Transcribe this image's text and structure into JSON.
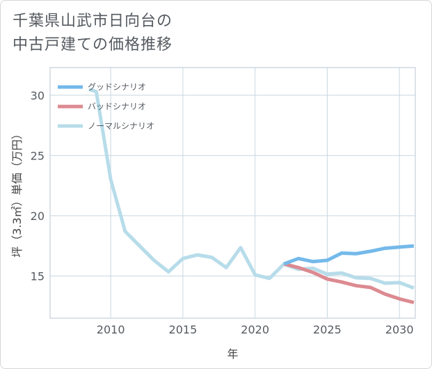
{
  "chart_data": {
    "type": "line",
    "title_line1": "千葉県山武市日向台の",
    "title_line2": "中古戸建ての価格推移",
    "xlabel": "年",
    "ylabel": "坪（3.3㎡）単価（万円）",
    "xlim": [
      2005.8,
      2031.1
    ],
    "ylim": [
      11.5,
      32.3
    ],
    "xticks": [
      2010,
      2015,
      2020,
      2025,
      2030
    ],
    "yticks": [
      15,
      20,
      25,
      30
    ],
    "series": [
      {
        "name": "グッドシナリオ",
        "color": "#74b9ea",
        "points": [
          [
            2022,
            16.0
          ],
          [
            2023,
            16.45
          ],
          [
            2024,
            16.2
          ],
          [
            2025,
            16.3
          ],
          [
            2026,
            16.9
          ],
          [
            2027,
            16.85
          ],
          [
            2028,
            17.05
          ],
          [
            2029,
            17.3
          ],
          [
            2030,
            17.4
          ],
          [
            2031,
            17.5
          ]
        ]
      },
      {
        "name": "バッドシナリオ",
        "color": "#dc8a90",
        "points": [
          [
            2022,
            16.0
          ],
          [
            2023,
            15.7
          ],
          [
            2024,
            15.3
          ],
          [
            2025,
            14.75
          ],
          [
            2026,
            14.5
          ],
          [
            2027,
            14.2
          ],
          [
            2028,
            14.05
          ],
          [
            2029,
            13.5
          ],
          [
            2030,
            13.1
          ],
          [
            2031,
            12.8
          ]
        ]
      },
      {
        "name": "ノーマルシナリオ",
        "color": "#b7dcea",
        "points": [
          [
            2008.5,
            30.5
          ],
          [
            2009,
            30.3
          ],
          [
            2010,
            23.0
          ],
          [
            2011,
            18.7
          ],
          [
            2012,
            17.5
          ],
          [
            2013,
            16.3
          ],
          [
            2014,
            15.35
          ],
          [
            2015,
            16.45
          ],
          [
            2016,
            16.75
          ],
          [
            2017,
            16.55
          ],
          [
            2018,
            15.7
          ],
          [
            2019,
            17.35
          ],
          [
            2020,
            15.1
          ],
          [
            2021,
            14.8
          ],
          [
            2022,
            16.0
          ],
          [
            2023,
            15.55
          ],
          [
            2024,
            15.65
          ],
          [
            2025,
            15.15
          ],
          [
            2026,
            15.25
          ],
          [
            2027,
            14.85
          ],
          [
            2028,
            14.8
          ],
          [
            2029,
            14.4
          ],
          [
            2030,
            14.45
          ],
          [
            2031,
            14.0
          ]
        ]
      }
    ]
  }
}
